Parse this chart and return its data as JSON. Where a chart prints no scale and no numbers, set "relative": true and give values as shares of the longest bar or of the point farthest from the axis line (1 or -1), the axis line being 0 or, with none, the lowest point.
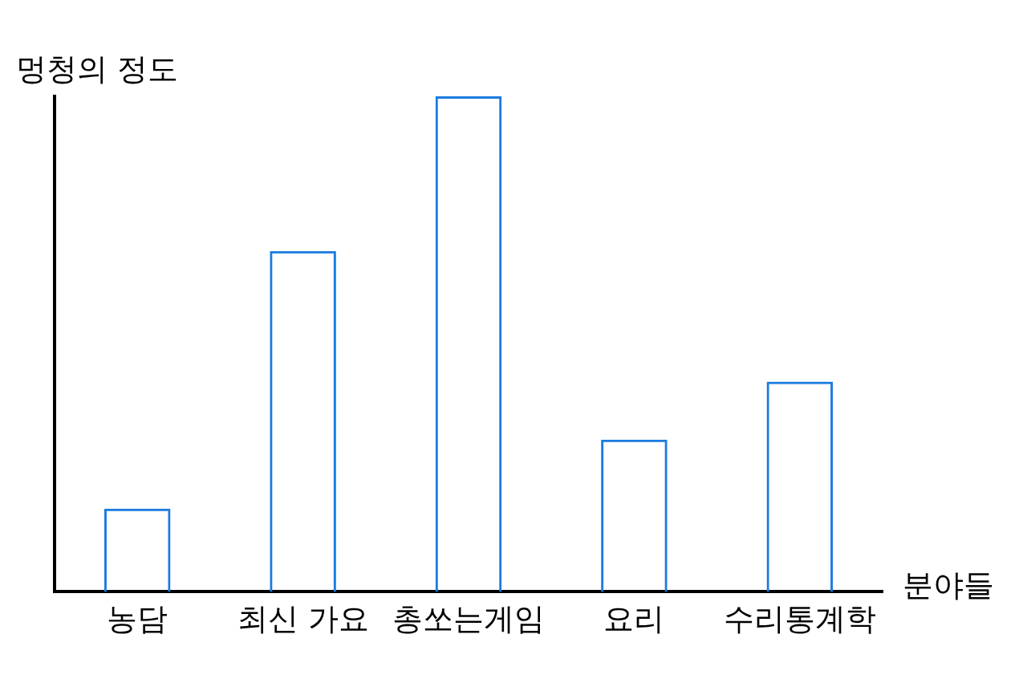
{
  "chart_data": {
    "type": "bar",
    "relative": true,
    "annotations": [
      "멍청의 정도"
    ],
    "xlabel": "분야들",
    "categories": [
      "농담",
      "최신 가요",
      "총쏘는게임",
      "요리",
      "수리통계학"
    ],
    "values": [
      0.168,
      0.688,
      1,
      0.307,
      0.424
    ],
    "color": "#1a7be0",
    "grid": false,
    "legend": false
  }
}
